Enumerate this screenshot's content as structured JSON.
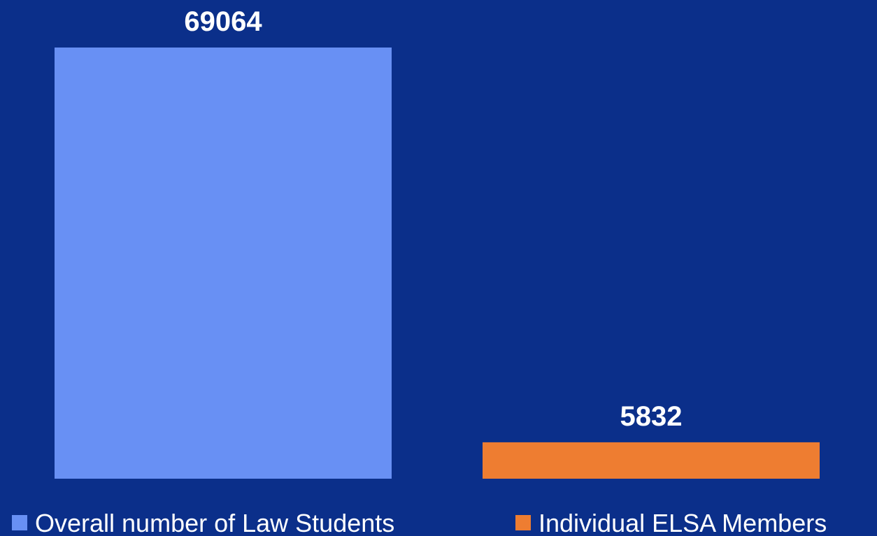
{
  "chart_data": {
    "type": "bar",
    "categories": [
      null
    ],
    "series": [
      {
        "name": "Overall number of Law Students",
        "color": "#6890f4",
        "values": [
          69064
        ]
      },
      {
        "name": "Individual ELSA Members",
        "color": "#ee7d31",
        "values": [
          5832
        ]
      }
    ]
  }
}
